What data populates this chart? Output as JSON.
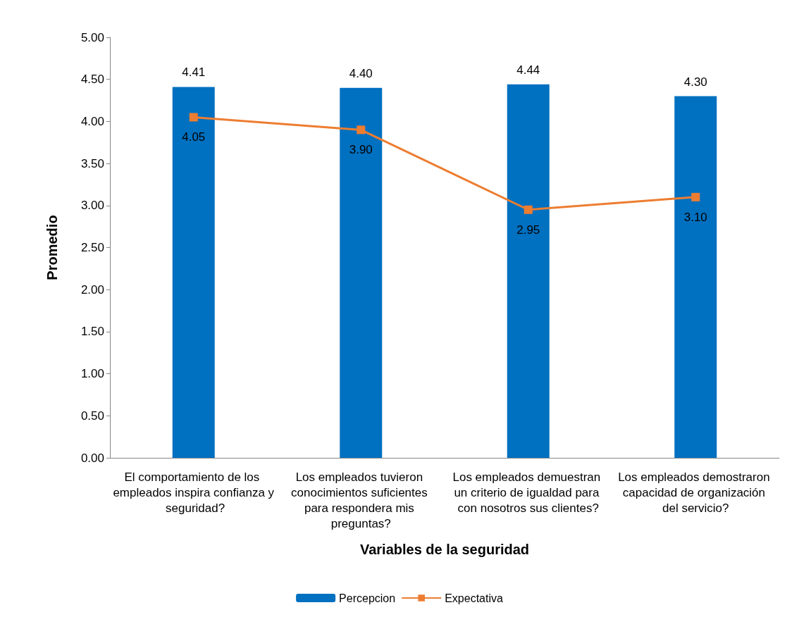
{
  "chart_data": {
    "type": "bar",
    "xlabel": "Variables de la seguridad",
    "ylabel": "Promedio",
    "categories": [
      "El comportamiento de los empleados inspira confianza y seguridad?",
      "Los empleados tuvieron conocimientos suficientes para respondera mis preguntas?",
      "Los empleados demuestran un criterio de igualdad para con nosotros sus clientes?",
      "Los empleados demostraron capacidad de organización del servicio?"
    ],
    "series": [
      {
        "name": "Percepcion",
        "color": "#0070c0",
        "values": [
          4.41,
          4.4,
          4.44,
          4.3
        ],
        "value_labels": [
          "4.41",
          "4.40",
          "4.44",
          "4.30"
        ]
      },
      {
        "name": "Expectativa",
        "type": "line",
        "color": "#ed7d31",
        "values": [
          4.05,
          3.9,
          2.95,
          3.1
        ],
        "value_labels": [
          "4.05",
          "3.90",
          "2.95",
          "3.10"
        ]
      }
    ],
    "ylim": [
      0,
      5
    ],
    "yticks": [
      {
        "value": 0,
        "label": "0.00"
      },
      {
        "value": 0.5,
        "label": "0.50"
      },
      {
        "value": 1,
        "label": "1.00"
      },
      {
        "value": 1.5,
        "label": "1.50"
      },
      {
        "value": 2,
        "label": "2.00"
      },
      {
        "value": 2.5,
        "label": "2.50"
      },
      {
        "value": 3,
        "label": "3.00"
      },
      {
        "value": 3.5,
        "label": "3.50"
      },
      {
        "value": 4,
        "label": "4.00"
      },
      {
        "value": 4.5,
        "label": "4.50"
      },
      {
        "value": 5,
        "label": "5.00"
      }
    ],
    "grid": false,
    "legend": "bottom",
    "marker": "square"
  }
}
